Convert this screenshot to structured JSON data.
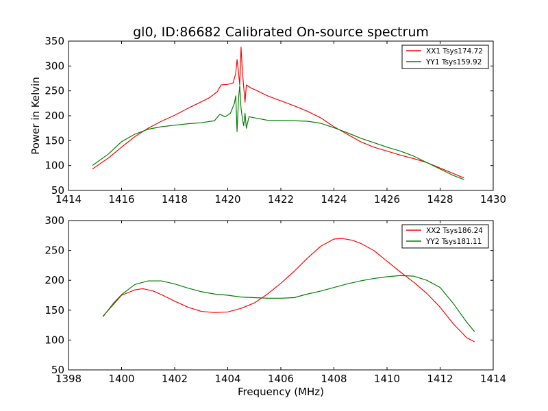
{
  "figure": {
    "title": "gl0, ID:86682 Calibrated On-source spectrum",
    "ylabel": "Power in Kelvin",
    "xlabel": "Frequency (MHz)"
  },
  "chart_data": [
    {
      "type": "line",
      "title": "gl0, ID:86682 Calibrated On-source spectrum",
      "ylabel": "Power in Kelvin",
      "xlabel": "",
      "xlim": [
        1414,
        1430
      ],
      "ylim": [
        50,
        350
      ],
      "xticks": [
        1414,
        1416,
        1418,
        1420,
        1422,
        1424,
        1426,
        1428,
        1430
      ],
      "yticks": [
        50,
        100,
        150,
        200,
        250,
        300,
        350
      ],
      "legend_position": "top-right",
      "series": [
        {
          "name": "XX1 Tsys174.72",
          "color": "#ff0000",
          "points": [
            [
              1414.9,
              93
            ],
            [
              1415.5,
              115
            ],
            [
              1416.0,
              137
            ],
            [
              1416.5,
              158
            ],
            [
              1417.0,
              175
            ],
            [
              1417.5,
              189
            ],
            [
              1418.0,
              201
            ],
            [
              1418.5,
              215
            ],
            [
              1419.0,
              228
            ],
            [
              1419.3,
              236
            ],
            [
              1419.6,
              248
            ],
            [
              1419.75,
              262
            ],
            [
              1420.0,
              263
            ],
            [
              1420.2,
              266
            ],
            [
              1420.3,
              285
            ],
            [
              1420.35,
              313
            ],
            [
              1420.4,
              290
            ],
            [
              1420.45,
              262
            ],
            [
              1420.5,
              338
            ],
            [
              1420.55,
              290
            ],
            [
              1420.6,
              258
            ],
            [
              1420.65,
              227
            ],
            [
              1420.7,
              262
            ],
            [
              1420.9,
              255
            ],
            [
              1421.0,
              253
            ],
            [
              1421.5,
              240
            ],
            [
              1422.0,
              230
            ],
            [
              1422.5,
              220
            ],
            [
              1423.0,
              209
            ],
            [
              1423.5,
              196
            ],
            [
              1424.0,
              178
            ],
            [
              1424.5,
              163
            ],
            [
              1425.0,
              148
            ],
            [
              1425.5,
              137
            ],
            [
              1426.0,
              129
            ],
            [
              1426.5,
              121
            ],
            [
              1427.0,
              114
            ],
            [
              1427.5,
              106
            ],
            [
              1428.0,
              95
            ],
            [
              1428.5,
              84
            ],
            [
              1428.9,
              75
            ]
          ]
        },
        {
          "name": "YY1 Tsys159.92",
          "color": "#007f00",
          "points": [
            [
              1414.9,
              100
            ],
            [
              1415.5,
              123
            ],
            [
              1416.0,
              148
            ],
            [
              1416.5,
              163
            ],
            [
              1417.0,
              173
            ],
            [
              1417.5,
              178
            ],
            [
              1418.0,
              181
            ],
            [
              1418.5,
              184
            ],
            [
              1419.0,
              186
            ],
            [
              1419.5,
              190
            ],
            [
              1419.7,
              203
            ],
            [
              1419.9,
              198
            ],
            [
              1420.1,
              205
            ],
            [
              1420.25,
              225
            ],
            [
              1420.3,
              240
            ],
            [
              1420.35,
              168
            ],
            [
              1420.4,
              230
            ],
            [
              1420.45,
              260
            ],
            [
              1420.5,
              215
            ],
            [
              1420.55,
              195
            ],
            [
              1420.6,
              180
            ],
            [
              1420.65,
              205
            ],
            [
              1420.7,
              175
            ],
            [
              1420.8,
              198
            ],
            [
              1421.0,
              196
            ],
            [
              1421.5,
              191
            ],
            [
              1422.0,
              191
            ],
            [
              1422.5,
              190
            ],
            [
              1423.0,
              189
            ],
            [
              1423.5,
              185
            ],
            [
              1424.0,
              176
            ],
            [
              1424.5,
              166
            ],
            [
              1425.0,
              155
            ],
            [
              1425.5,
              146
            ],
            [
              1426.0,
              137
            ],
            [
              1426.5,
              129
            ],
            [
              1427.0,
              119
            ],
            [
              1427.5,
              106
            ],
            [
              1428.0,
              93
            ],
            [
              1428.5,
              80
            ],
            [
              1428.9,
              72
            ]
          ]
        }
      ]
    },
    {
      "type": "line",
      "title": "",
      "ylabel": "Power in Kelvin",
      "xlabel": "Frequency (MHz)",
      "xlim": [
        1398,
        1414
      ],
      "ylim": [
        50,
        300
      ],
      "xticks": [
        1398,
        1400,
        1402,
        1404,
        1406,
        1408,
        1410,
        1412,
        1414
      ],
      "yticks": [
        50,
        100,
        150,
        200,
        250,
        300
      ],
      "legend_position": "top-right",
      "series": [
        {
          "name": "XX2 Tsys186.24",
          "color": "#ff0000",
          "points": [
            [
              1399.3,
              140
            ],
            [
              1399.7,
              160
            ],
            [
              1400.0,
              175
            ],
            [
              1400.5,
              184
            ],
            [
              1400.8,
              186
            ],
            [
              1401.2,
              182
            ],
            [
              1401.5,
              176
            ],
            [
              1402.0,
              165
            ],
            [
              1402.5,
              155
            ],
            [
              1403.0,
              148
            ],
            [
              1403.5,
              146
            ],
            [
              1404.0,
              147
            ],
            [
              1404.5,
              153
            ],
            [
              1405.0,
              162
            ],
            [
              1405.5,
              177
            ],
            [
              1406.0,
              195
            ],
            [
              1406.5,
              215
            ],
            [
              1407.0,
              237
            ],
            [
              1407.5,
              257
            ],
            [
              1408.0,
              269
            ],
            [
              1408.3,
              270
            ],
            [
              1408.7,
              267
            ],
            [
              1409.0,
              262
            ],
            [
              1409.5,
              250
            ],
            [
              1410.0,
              232
            ],
            [
              1410.5,
              214
            ],
            [
              1411.0,
              197
            ],
            [
              1411.5,
              178
            ],
            [
              1412.0,
              155
            ],
            [
              1412.5,
              127
            ],
            [
              1413.0,
              104
            ],
            [
              1413.3,
              97
            ]
          ]
        },
        {
          "name": "YY2 Tsys181.11",
          "color": "#007f00",
          "points": [
            [
              1399.3,
              139
            ],
            [
              1399.7,
              162
            ],
            [
              1400.0,
              176
            ],
            [
              1400.5,
              193
            ],
            [
              1401.0,
              199
            ],
            [
              1401.5,
              199
            ],
            [
              1402.0,
              194
            ],
            [
              1402.5,
              187
            ],
            [
              1403.0,
              181
            ],
            [
              1403.5,
              177
            ],
            [
              1404.0,
              175
            ],
            [
              1404.5,
              172
            ],
            [
              1405.0,
              171
            ],
            [
              1405.5,
              170
            ],
            [
              1406.0,
              170
            ],
            [
              1406.5,
              171
            ],
            [
              1407.0,
              177
            ],
            [
              1407.5,
              182
            ],
            [
              1408.0,
              188
            ],
            [
              1408.5,
              194
            ],
            [
              1409.0,
              199
            ],
            [
              1409.5,
              203
            ],
            [
              1410.0,
              206
            ],
            [
              1410.5,
              208
            ],
            [
              1411.0,
              207
            ],
            [
              1411.5,
              200
            ],
            [
              1412.0,
              188
            ],
            [
              1412.5,
              161
            ],
            [
              1413.0,
              130
            ],
            [
              1413.3,
              114
            ]
          ]
        }
      ]
    }
  ]
}
